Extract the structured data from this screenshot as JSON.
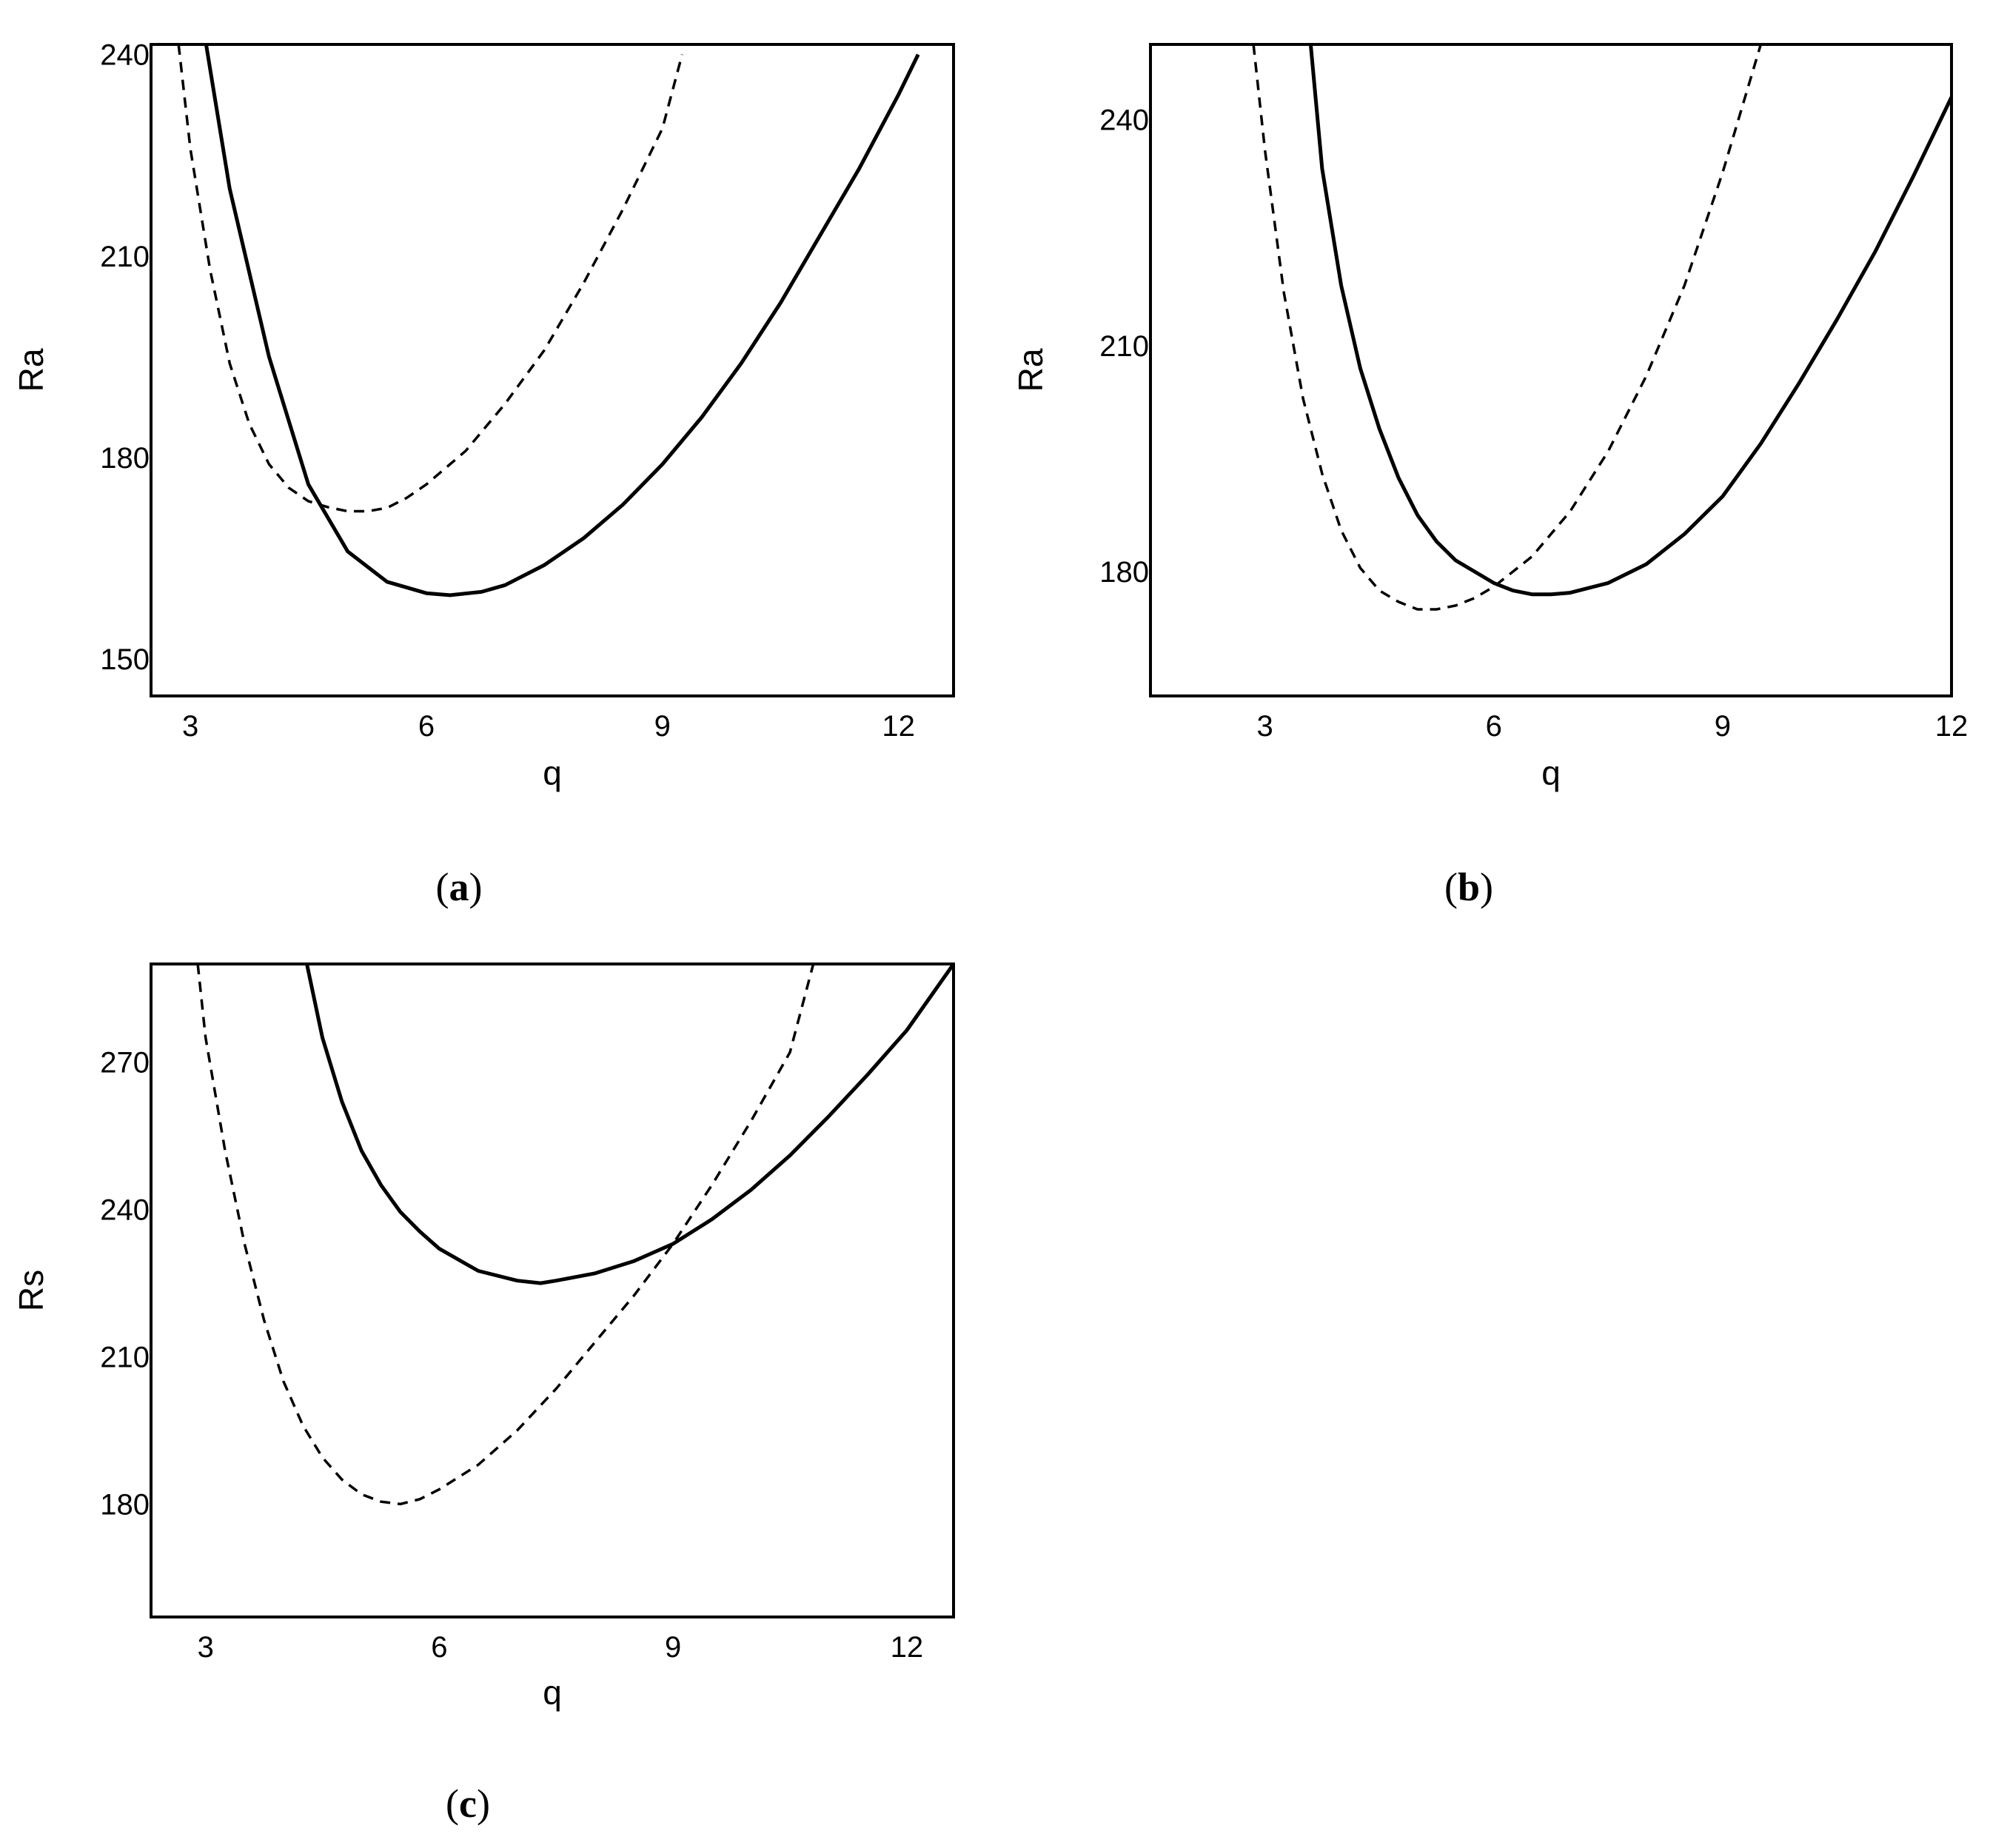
{
  "chart_data": [
    {
      "type": "line",
      "panel": "a",
      "caption_letter": "a",
      "xlabel": "q",
      "ylabel": "Ra",
      "xlim": [
        2.5,
        12.7
      ],
      "ylim": [
        144.5,
        241.5
      ],
      "xticks": [
        3,
        6,
        9,
        12
      ],
      "xtick_labels": [
        "3",
        "6",
        "9",
        "12"
      ],
      "yticks": [
        150,
        180,
        210,
        240
      ],
      "ytick_labels": [
        "150",
        "180",
        "210",
        "240"
      ],
      "series": [
        {
          "style": "solid",
          "x": [
            3.2,
            3.5,
            4.0,
            4.5,
            5.0,
            5.5,
            6.0,
            6.3,
            6.7,
            7.0,
            7.5,
            8.0,
            8.5,
            9.0,
            9.5,
            10.0,
            10.5,
            11.0,
            11.5,
            12.0,
            12.25
          ],
          "y": [
            241.5,
            220,
            195,
            176,
            166,
            161.5,
            159.8,
            159.5,
            160,
            161,
            164,
            168,
            173,
            179,
            186,
            194,
            203,
            213,
            223,
            234,
            240
          ]
        },
        {
          "style": "dashed",
          "x": [
            2.85,
            3.0,
            3.25,
            3.5,
            3.75,
            4.0,
            4.25,
            4.5,
            4.75,
            5.0,
            5.25,
            5.5,
            5.75,
            6.0,
            6.5,
            7.0,
            7.5,
            8.0,
            8.5,
            9.0,
            9.25
          ],
          "y": [
            241.5,
            226,
            208,
            194,
            185,
            179,
            175.5,
            173.5,
            172.6,
            172,
            172,
            172.5,
            174,
            176,
            181,
            188,
            196,
            206,
            217,
            229,
            240
          ]
        }
      ]
    },
    {
      "type": "line",
      "panel": "b",
      "caption_letter": "b",
      "xlabel": "q",
      "ylabel": "Ra",
      "xlim": [
        1.5,
        12.0
      ],
      "ylim": [
        163.5,
        250.0
      ],
      "xticks": [
        3,
        6,
        9,
        12
      ],
      "xtick_labels": [
        "3",
        "6",
        "9",
        "12"
      ],
      "yticks": [
        180,
        210,
        240
      ],
      "ytick_labels": [
        "180",
        "210",
        "240"
      ],
      "series": [
        {
          "style": "solid",
          "x": [
            3.6,
            3.75,
            4.0,
            4.25,
            4.5,
            4.75,
            5.0,
            5.25,
            5.5,
            5.75,
            6.0,
            6.25,
            6.5,
            6.75,
            7.0,
            7.5,
            8.0,
            8.5,
            9.0,
            9.5,
            10.0,
            10.5,
            11.0,
            11.5,
            12.0
          ],
          "y": [
            250,
            233.5,
            218,
            207,
            199,
            192.5,
            187.5,
            184,
            181.5,
            180,
            178.5,
            177.5,
            177,
            177,
            177.2,
            178.5,
            181,
            185,
            190,
            197,
            205,
            213.5,
            222.5,
            232.5,
            243
          ]
        },
        {
          "style": "dashed",
          "x": [
            2.85,
            3.0,
            3.25,
            3.5,
            3.75,
            4.0,
            4.25,
            4.5,
            4.75,
            5.0,
            5.25,
            5.5,
            5.75,
            6.0,
            6.5,
            7.0,
            7.5,
            8.0,
            8.5,
            9.0,
            9.5
          ],
          "y": [
            250,
            236,
            217,
            203,
            193,
            185.5,
            180.5,
            177.5,
            176,
            175,
            175,
            175.5,
            176.5,
            178,
            182,
            188,
            196,
            206,
            218,
            233,
            250
          ]
        }
      ]
    },
    {
      "type": "line",
      "panel": "c",
      "caption_letter": "c",
      "xlabel": "q",
      "ylabel": "Rs",
      "xlim": [
        2.3,
        12.6
      ],
      "ylim": [
        157,
        290
      ],
      "xticks": [
        3,
        6,
        9,
        12
      ],
      "xtick_labels": [
        "3",
        "6",
        "9",
        "12"
      ],
      "yticks": [
        180,
        210,
        240,
        270
      ],
      "ytick_labels": [
        "180",
        "210",
        "240",
        "270"
      ],
      "series": [
        {
          "style": "solid",
          "x": [
            4.3,
            4.5,
            4.75,
            5.0,
            5.25,
            5.5,
            5.75,
            6.0,
            6.5,
            7.0,
            7.3,
            7.5,
            8.0,
            8.5,
            9.0,
            9.5,
            10.0,
            10.5,
            11.0,
            11.5,
            12.0,
            12.6
          ],
          "y": [
            290,
            275,
            262,
            252,
            245,
            239.5,
            235.5,
            232,
            227.5,
            225.5,
            225,
            225.5,
            227,
            229.5,
            233,
            238,
            244,
            251,
            259,
            267.5,
            276.5,
            290
          ]
        },
        {
          "style": "dashed",
          "x": [
            2.9,
            3.0,
            3.25,
            3.5,
            3.75,
            4.0,
            4.25,
            4.5,
            4.75,
            5.0,
            5.25,
            5.5,
            5.75,
            6.0,
            6.5,
            7.0,
            7.5,
            8.0,
            8.5,
            9.0,
            9.5,
            10.0,
            10.5,
            10.8
          ],
          "y": [
            290,
            275,
            252,
            233,
            217.5,
            205,
            196,
            189.5,
            185,
            182,
            180.5,
            180,
            181,
            183,
            188,
            195,
            203.5,
            213,
            222.5,
            233,
            245,
            258,
            272,
            290
          ]
        }
      ]
    }
  ]
}
